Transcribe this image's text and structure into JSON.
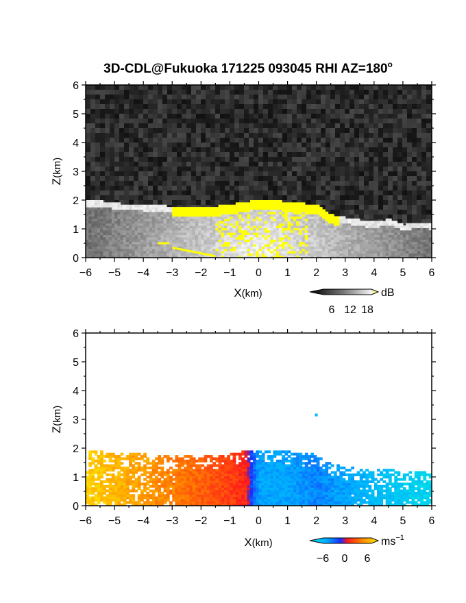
{
  "title_main": "3D-CDL@Fukuoka 171225 093045 RHI AZ=180",
  "title_deg": "o",
  "chart_data": [
    {
      "type": "heatmap",
      "name": "snr-panel",
      "xlabel_main": "X",
      "xlabel_unit": "(km)",
      "ylabel_main": "Z",
      "ylabel_unit": "(km)",
      "xlim": [
        -6,
        6
      ],
      "ylim": [
        0,
        6
      ],
      "xticks": [
        -6,
        -5,
        -4,
        -3,
        -2,
        -1,
        0,
        1,
        2,
        3,
        4,
        5,
        6
      ],
      "yticks": [
        0,
        1,
        2,
        3,
        4,
        5,
        6
      ],
      "background": "noise (dark gray)",
      "colorbar": {
        "unit": "dB",
        "ticks": [
          6,
          12,
          18
        ],
        "range": [
          0,
          20
        ],
        "colormap": "grayscale to yellow"
      },
      "echo_top_km": [
        [
          -6,
          1.95
        ],
        [
          -5.5,
          1.95
        ],
        [
          -5,
          1.85
        ],
        [
          -4,
          1.8
        ],
        [
          -3,
          1.75
        ],
        [
          -2,
          1.7
        ],
        [
          -1,
          1.8
        ],
        [
          -0.5,
          1.9
        ],
        [
          0,
          1.95
        ],
        [
          0.5,
          1.95
        ],
        [
          1,
          1.9
        ],
        [
          2,
          1.8
        ],
        [
          2.5,
          1.45
        ],
        [
          3,
          1.35
        ],
        [
          4,
          1.2
        ],
        [
          4.5,
          1.3
        ],
        [
          5,
          1.1
        ],
        [
          5.5,
          1.2
        ],
        [
          6,
          1.15
        ]
      ]
    },
    {
      "type": "heatmap",
      "name": "velocity-panel",
      "xlabel_main": "X",
      "xlabel_unit": "(km)",
      "ylabel_main": "Z",
      "ylabel_unit": "(km)",
      "xlim": [
        -6,
        6
      ],
      "ylim": [
        0,
        6
      ],
      "xticks": [
        -6,
        -5,
        -4,
        -3,
        -2,
        -1,
        0,
        1,
        2,
        3,
        4,
        5,
        6
      ],
      "yticks": [
        0,
        1,
        2,
        3,
        4,
        5,
        6
      ],
      "background": "white (no data)",
      "colorbar": {
        "unit_main": "ms",
        "unit_exp": "−1",
        "ticks": [
          "−6",
          "0",
          "6"
        ],
        "range": [
          -8,
          8
        ],
        "colormap": "cyan-blue-red-yellow"
      },
      "velocity_at_x_ms": [
        [
          -6,
          7
        ],
        [
          -5,
          6
        ],
        [
          -4,
          5
        ],
        [
          -3,
          4
        ],
        [
          -2,
          3
        ],
        [
          -1,
          2
        ],
        [
          -0.4,
          1
        ],
        [
          -0.2,
          -2
        ],
        [
          0,
          -4
        ],
        [
          1,
          -4
        ],
        [
          2,
          -3
        ],
        [
          3,
          -4
        ],
        [
          4,
          -5
        ],
        [
          5,
          -6
        ],
        [
          6,
          -7
        ]
      ]
    }
  ]
}
